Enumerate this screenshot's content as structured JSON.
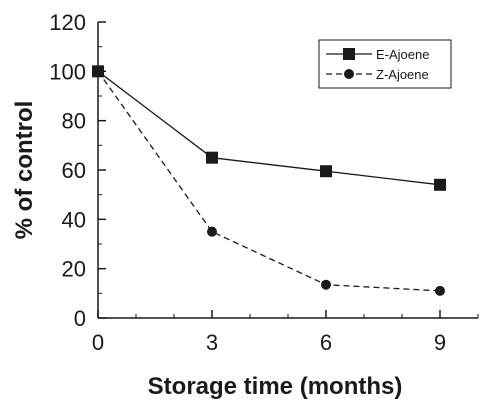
{
  "chart_data": {
    "type": "line",
    "title": "",
    "xlabel": "Storage time (months)",
    "ylabel": "% of control",
    "x": [
      0,
      3,
      6,
      9
    ],
    "xticks": [
      "0",
      "3",
      "6",
      "9"
    ],
    "xlim": [
      0,
      10
    ],
    "yticks": [
      "0",
      "20",
      "40",
      "60",
      "80",
      "100",
      "120"
    ],
    "ylim": [
      0,
      120
    ],
    "grid": false,
    "legend_position": "top-right",
    "series": [
      {
        "name": "E-Ajoene",
        "values": [
          100,
          65,
          59.5,
          54
        ],
        "marker": "square",
        "line": "solid",
        "color": "#1a1a1a"
      },
      {
        "name": "Z-Ajoene",
        "values": [
          100,
          35,
          13.5,
          11
        ],
        "marker": "circle",
        "line": "dashed",
        "color": "#1a1a1a"
      }
    ]
  }
}
